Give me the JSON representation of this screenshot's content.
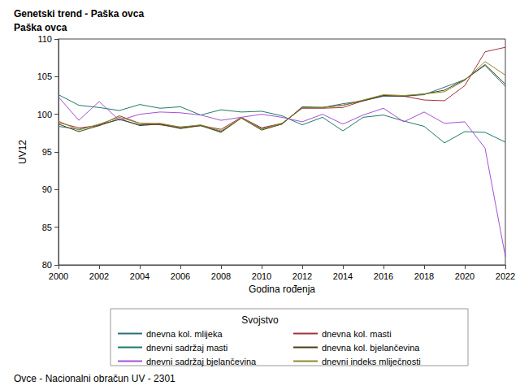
{
  "chart_data": {
    "type": "line",
    "title": "Genetski trend - Paška ovca",
    "subtitle": "Paška ovca",
    "x_label": "Godina rođenja",
    "y_label": "UV12",
    "legend_title": "Svojstvo",
    "footnote": "Ovce - Nacionalni obračun UV - 2301",
    "legend": "bottom",
    "grid": false,
    "x": [
      2000,
      2001,
      2002,
      2003,
      2004,
      2005,
      2006,
      2007,
      2008,
      2009,
      2010,
      2011,
      2012,
      2013,
      2014,
      2015,
      2016,
      2017,
      2018,
      2019,
      2020,
      2021,
      2022
    ],
    "xlim": [
      2000,
      2022
    ],
    "xticks": [
      2000,
      2002,
      2004,
      2006,
      2008,
      2010,
      2012,
      2014,
      2016,
      2018,
      2020,
      2022
    ],
    "ylim": [
      80,
      110
    ],
    "yticks": [
      80,
      85,
      90,
      95,
      100,
      105,
      110
    ],
    "series": [
      {
        "name": "dnevna kol. mlijeka",
        "color": "#2b6f7d",
        "values": [
          98.4,
          98.0,
          98.6,
          99.3,
          98.6,
          98.7,
          98.3,
          98.5,
          97.7,
          99.5,
          98.1,
          98.7,
          101.0,
          100.9,
          101.4,
          101.8,
          102.4,
          102.4,
          102.6,
          103.6,
          104.6,
          106.5,
          103.7
        ]
      },
      {
        "name": "dnevna kol. masti",
        "color": "#a3323f",
        "values": [
          98.9,
          98.2,
          98.5,
          99.8,
          98.8,
          98.6,
          98.2,
          98.5,
          98.0,
          99.6,
          98.2,
          98.8,
          100.8,
          100.8,
          100.9,
          101.8,
          102.5,
          102.4,
          101.9,
          101.8,
          103.8,
          108.3,
          108.9
        ]
      },
      {
        "name": "dnevni sadržaj masti",
        "color": "#1f7a68",
        "values": [
          102.6,
          101.2,
          100.9,
          100.5,
          101.3,
          100.8,
          101.0,
          99.9,
          100.6,
          100.3,
          100.4,
          99.8,
          98.6,
          99.6,
          97.8,
          99.6,
          99.9,
          99.1,
          98.4,
          96.2,
          97.7,
          97.6,
          96.3
        ]
      },
      {
        "name": "dnevna kol. bjelančevina",
        "color": "#4a3f16",
        "values": [
          98.7,
          97.7,
          98.5,
          99.4,
          98.5,
          98.7,
          98.1,
          98.5,
          97.6,
          99.5,
          97.9,
          98.7,
          100.9,
          100.9,
          101.2,
          101.8,
          102.5,
          102.4,
          102.7,
          103.2,
          104.6,
          106.6,
          104.0
        ]
      },
      {
        "name": "dnevni sadržaj bjelančevina",
        "color": "#a64fd6",
        "values": [
          102.3,
          99.2,
          101.7,
          99.2,
          100.0,
          100.3,
          100.2,
          99.9,
          99.2,
          99.6,
          100.0,
          99.6,
          99.0,
          100.0,
          98.7,
          99.9,
          100.8,
          99.0,
          100.3,
          98.8,
          99.0,
          95.5,
          81.1
        ]
      },
      {
        "name": "dnevni indeks mliječnosti",
        "color": "#8c8a2a",
        "values": [
          99.1,
          97.9,
          98.7,
          99.6,
          98.8,
          98.8,
          98.3,
          98.6,
          97.8,
          99.5,
          98.0,
          98.8,
          100.9,
          100.9,
          101.2,
          101.9,
          102.6,
          102.5,
          102.7,
          103.0,
          104.5,
          107.0,
          105.2
        ]
      }
    ]
  }
}
